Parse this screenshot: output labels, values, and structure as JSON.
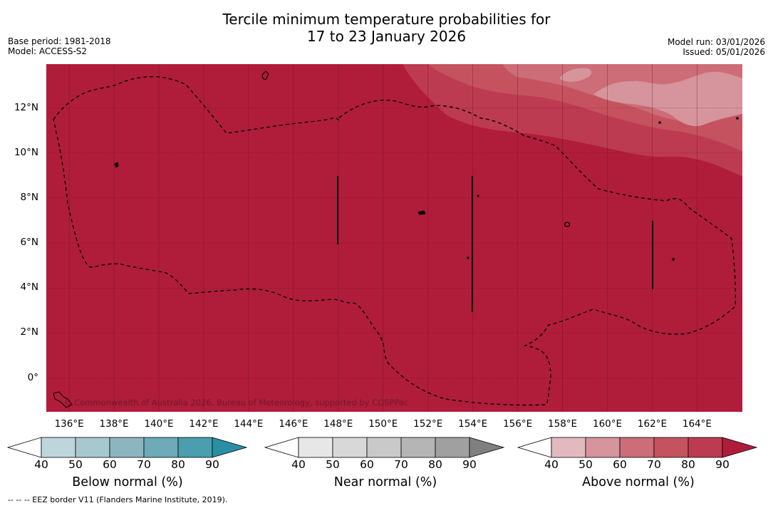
{
  "title": {
    "line1": "Tercile minimum temperature probabilities for",
    "line2": "17 to 23 January 2026"
  },
  "meta": {
    "base_period": "Base period: 1981-2018",
    "model": "Model: ACCESS-S2",
    "model_run": "Model run: 03/01/2026",
    "issued": "Issued: 05/01/2026"
  },
  "map": {
    "lat_labels": [
      "12°N",
      "10°N",
      "8°N",
      "6°N",
      "4°N",
      "2°N",
      "0°"
    ],
    "lat_values": [
      12,
      10,
      8,
      6,
      4,
      2,
      0
    ],
    "lon_labels": [
      "136°E",
      "138°E",
      "140°E",
      "142°E",
      "144°E",
      "146°E",
      "148°E",
      "150°E",
      "152°E",
      "154°E",
      "156°E",
      "158°E",
      "160°E",
      "162°E",
      "164°E"
    ],
    "lon_values": [
      136,
      138,
      140,
      142,
      144,
      146,
      148,
      150,
      152,
      154,
      156,
      158,
      160,
      162,
      164
    ],
    "lon_range": [
      134.98,
      166.02
    ],
    "lat_range": [
      -1.5,
      13.95
    ],
    "dominant_category": "Above normal",
    "dominant_probability": "90+",
    "copyright": "© Commonwealth of Australia 2026, Bureau of Meteorology, supported by COSPPac",
    "colors": {
      "above_90": "#b01d3a",
      "above_80": "#bd3b51",
      "above_70": "#c5535f",
      "above_60": "#cc6d77",
      "above_50": "#d6949c"
    }
  },
  "colorbars": [
    {
      "name": "below",
      "label": "Below normal (%)",
      "ticks": [
        "40",
        "50",
        "60",
        "70",
        "80",
        "90"
      ],
      "colors": [
        "#ffffff",
        "#bfd5dc",
        "#a8c8cf",
        "#8cb5c0",
        "#6eaab7",
        "#4a9eae",
        "#2a8fa4"
      ]
    },
    {
      "name": "near",
      "label": "Near normal (%)",
      "ticks": [
        "40",
        "50",
        "60",
        "70",
        "80",
        "90"
      ],
      "colors": [
        "#ffffff",
        "#e7e7e7",
        "#d8d8d8",
        "#c9c9c9",
        "#b5b5b5",
        "#a0a0a0",
        "#808080"
      ]
    },
    {
      "name": "above",
      "label": "Above normal (%)",
      "ticks": [
        "40",
        "50",
        "60",
        "70",
        "80",
        "90"
      ],
      "colors": [
        "#ffffff",
        "#e2b9bf",
        "#d6949c",
        "#cc6d77",
        "#c5535f",
        "#bd3b51",
        "#b01d3a"
      ]
    }
  ],
  "footnote": "--  --  -- EEZ border V11 (Flanders Marine Institute, 2019)."
}
